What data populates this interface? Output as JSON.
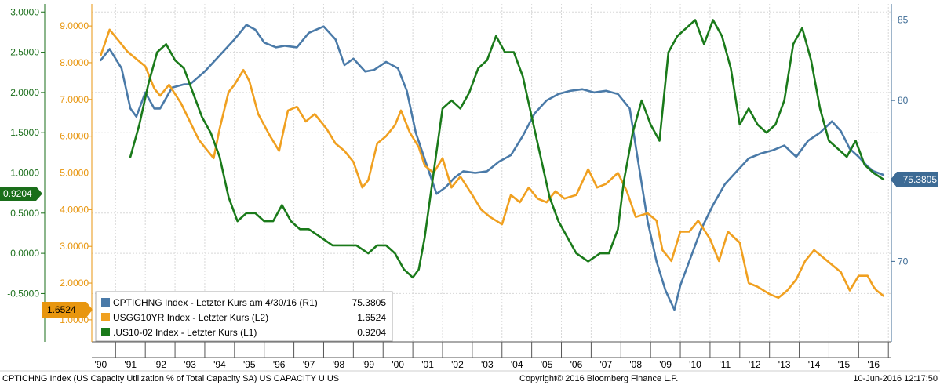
{
  "chart_data": {
    "type": "line",
    "x_tick_labels": [
      "'90",
      "'91",
      "'92",
      "'93",
      "'94",
      "'95",
      "'96",
      "'97",
      "'98",
      "'99",
      "'00",
      "'01",
      "'02",
      "'03",
      "'04",
      "'05",
      "'06",
      "'07",
      "'08",
      "'09",
      "'10",
      "'11",
      "'12",
      "'13",
      "'14",
      "'15",
      "'16"
    ],
    "x_range": [
      1989.7,
      2016.6
    ],
    "axes": {
      "L1": {
        "range": [
          -1.1,
          3.1
        ],
        "ticks": [
          -0.5,
          0,
          0.5,
          1,
          1.5,
          2,
          2.5,
          3
        ],
        "labels": [
          "-0.5000",
          "0.0000",
          "0.5000",
          "1.0000",
          "1.5000",
          "2.0000",
          "2.5000",
          "3.0000"
        ],
        "color": "#1a6e1a"
      },
      "L2": {
        "range": [
          0.4,
          9.6
        ],
        "ticks": [
          1,
          2,
          3,
          4,
          5,
          6,
          7,
          8,
          9
        ],
        "labels": [
          "1.0000",
          "2.0000",
          "3.0000",
          "4.0000",
          "5.0000",
          "6.0000",
          "7.0000",
          "8.0000",
          "9.0000"
        ],
        "color": "#e8960f"
      },
      "R1": {
        "range": [
          65,
          86
        ],
        "ticks": [
          70,
          75,
          80,
          85
        ],
        "labels": [
          "70",
          "75",
          "80",
          "85"
        ],
        "color": "#3d6b95"
      }
    },
    "grid": true,
    "series": [
      {
        "key": "cpt",
        "axis": "R1",
        "color": "#4a7aa8",
        "x": [
          1990.0,
          1990.3,
          1990.7,
          1991.0,
          1991.2,
          1991.5,
          1991.8,
          1992.0,
          1992.4,
          1992.8,
          1993.0,
          1993.5,
          1994.0,
          1994.5,
          1994.9,
          1995.2,
          1995.5,
          1995.9,
          1996.2,
          1996.6,
          1997.0,
          1997.5,
          1997.9,
          1998.2,
          1998.5,
          1998.9,
          1999.2,
          1999.6,
          2000.0,
          2000.3,
          2000.6,
          2001.0,
          2001.3,
          2001.6,
          2001.9,
          2002.2,
          2002.6,
          2003.0,
          2003.4,
          2003.8,
          2004.2,
          2004.6,
          2005.0,
          2005.4,
          2005.8,
          2006.2,
          2006.6,
          2007.0,
          2007.4,
          2007.8,
          2008.1,
          2008.4,
          2008.7,
          2009.0,
          2009.3,
          2009.5,
          2009.8,
          2010.2,
          2010.6,
          2011.0,
          2011.4,
          2011.8,
          2012.2,
          2012.6,
          2013.0,
          2013.4,
          2013.8,
          2014.2,
          2014.6,
          2014.9,
          2015.2,
          2015.5,
          2015.8,
          2016.0,
          2016.33
        ],
        "y": [
          82.5,
          83.2,
          82.0,
          79.5,
          79.0,
          80.5,
          79.5,
          79.5,
          80.8,
          81.0,
          81.0,
          81.8,
          82.8,
          83.8,
          84.7,
          84.4,
          83.6,
          83.3,
          83.4,
          83.3,
          84.2,
          84.6,
          83.8,
          82.2,
          82.6,
          81.8,
          81.9,
          82.4,
          82.0,
          80.6,
          78.0,
          75.8,
          74.2,
          74.6,
          75.2,
          75.6,
          75.5,
          75.6,
          76.2,
          76.6,
          77.8,
          79.2,
          80.0,
          80.4,
          80.6,
          80.7,
          80.5,
          80.6,
          80.4,
          79.5,
          76.0,
          72.5,
          70.0,
          68.2,
          67.0,
          68.5,
          70.0,
          72.0,
          73.5,
          74.8,
          75.6,
          76.4,
          76.7,
          76.9,
          77.2,
          76.5,
          77.5,
          78.0,
          78.7,
          78.1,
          77.0,
          76.5,
          75.9,
          75.6,
          75.3805
        ]
      },
      {
        "key": "usgg",
        "axis": "L2",
        "color": "#f0a020",
        "x": [
          1990.0,
          1990.3,
          1990.6,
          1990.9,
          1991.2,
          1991.5,
          1991.8,
          1992.0,
          1992.3,
          1992.7,
          1993.0,
          1993.3,
          1993.6,
          1993.8,
          1994.0,
          1994.3,
          1994.5,
          1994.8,
          1995.0,
          1995.3,
          1995.7,
          1996.0,
          1996.3,
          1996.6,
          1996.9,
          1997.2,
          1997.6,
          1997.9,
          1998.2,
          1998.5,
          1998.8,
          1999.0,
          1999.3,
          1999.6,
          1999.9,
          2000.1,
          2000.4,
          2000.7,
          2000.9,
          2001.2,
          2001.5,
          2001.8,
          2002.1,
          2002.5,
          2002.8,
          2003.1,
          2003.5,
          2003.8,
          2004.1,
          2004.4,
          2004.7,
          2005.0,
          2005.3,
          2005.6,
          2006.0,
          2006.4,
          2006.7,
          2007.0,
          2007.4,
          2007.7,
          2008.0,
          2008.4,
          2008.7,
          2008.9,
          2009.2,
          2009.5,
          2009.8,
          2010.1,
          2010.5,
          2010.8,
          2011.1,
          2011.5,
          2011.8,
          2012.1,
          2012.5,
          2012.8,
          2013.1,
          2013.4,
          2013.7,
          2014.0,
          2014.3,
          2014.6,
          2014.9,
          2015.2,
          2015.5,
          2015.8,
          2016.0,
          2016.1,
          2016.33
        ],
        "y": [
          8.2,
          8.9,
          8.6,
          8.3,
          8.1,
          7.9,
          7.3,
          7.1,
          7.4,
          6.9,
          6.4,
          5.9,
          5.6,
          5.4,
          6.2,
          7.2,
          7.4,
          7.8,
          7.5,
          6.6,
          6.0,
          5.6,
          6.7,
          6.8,
          6.4,
          6.6,
          6.2,
          5.8,
          5.6,
          5.3,
          4.6,
          4.8,
          5.8,
          6.0,
          6.3,
          6.7,
          6.1,
          5.7,
          5.2,
          5.0,
          5.4,
          4.6,
          4.9,
          4.4,
          4.0,
          3.8,
          3.6,
          4.4,
          4.2,
          4.6,
          4.3,
          4.2,
          4.5,
          4.3,
          4.4,
          5.1,
          4.6,
          4.7,
          5.0,
          4.5,
          3.8,
          3.9,
          3.7,
          2.9,
          2.6,
          3.4,
          3.4,
          3.7,
          3.2,
          2.6,
          3.4,
          3.1,
          2.0,
          1.9,
          1.7,
          1.6,
          1.8,
          2.1,
          2.6,
          2.9,
          2.7,
          2.5,
          2.3,
          1.8,
          2.2,
          2.2,
          1.9,
          1.8,
          1.6524
        ]
      },
      {
        "key": "us1002",
        "axis": "L1",
        "color": "#1a7a1a",
        "x": [
          1991.0,
          1991.3,
          1991.6,
          1991.9,
          1992.2,
          1992.5,
          1992.8,
          1993.1,
          1993.4,
          1993.7,
          1994.0,
          1994.3,
          1994.6,
          1994.9,
          1995.2,
          1995.5,
          1995.8,
          1996.1,
          1996.4,
          1996.7,
          1997.0,
          1997.4,
          1997.8,
          1998.2,
          1998.6,
          1999.0,
          1999.3,
          1999.6,
          1999.9,
          2000.2,
          2000.5,
          2000.7,
          2000.9,
          2001.2,
          2001.5,
          2001.8,
          2002.1,
          2002.4,
          2002.7,
          2003.0,
          2003.3,
          2003.6,
          2003.9,
          2004.2,
          2004.5,
          2004.8,
          2005.1,
          2005.4,
          2005.7,
          2006.0,
          2006.4,
          2006.8,
          2007.1,
          2007.4,
          2007.6,
          2007.9,
          2008.2,
          2008.5,
          2008.8,
          2009.1,
          2009.4,
          2009.7,
          2010.0,
          2010.3,
          2010.6,
          2010.9,
          2011.2,
          2011.5,
          2011.8,
          2012.1,
          2012.4,
          2012.7,
          2013.0,
          2013.3,
          2013.6,
          2013.9,
          2014.2,
          2014.5,
          2014.8,
          2015.1,
          2015.4,
          2015.7,
          2016.0,
          2016.33
        ],
        "y": [
          1.2,
          1.6,
          2.1,
          2.5,
          2.6,
          2.4,
          2.3,
          2.0,
          1.7,
          1.5,
          1.2,
          0.7,
          0.4,
          0.5,
          0.5,
          0.4,
          0.4,
          0.6,
          0.4,
          0.3,
          0.3,
          0.2,
          0.1,
          0.1,
          0.1,
          0.0,
          0.1,
          0.1,
          0.0,
          -0.2,
          -0.3,
          -0.2,
          0.2,
          1.0,
          1.8,
          1.9,
          1.8,
          2.0,
          2.3,
          2.4,
          2.7,
          2.5,
          2.5,
          2.2,
          1.7,
          1.2,
          0.7,
          0.4,
          0.2,
          0.0,
          -0.1,
          0.0,
          0.0,
          0.3,
          0.9,
          1.5,
          1.9,
          1.6,
          1.4,
          2.5,
          2.7,
          2.8,
          2.9,
          2.6,
          2.9,
          2.7,
          2.3,
          1.6,
          1.8,
          1.6,
          1.5,
          1.6,
          1.9,
          2.6,
          2.8,
          2.4,
          1.8,
          1.4,
          1.3,
          1.2,
          1.4,
          1.1,
          1.0,
          0.9204
        ]
      }
    ],
    "legend": {
      "placement": "bottom-left",
      "entries": [
        {
          "series": "cpt",
          "label": "CPTICHNG Index - Letzter Kurs am 4/30/16 (R1)",
          "value": "75.3805"
        },
        {
          "series": "usgg",
          "label": "USGG10YR Index - Letzter Kurs (L2)",
          "value": "1.6524"
        },
        {
          "series": "us1002",
          "label": ".US10-02 Index - Letzter Kurs (L1)",
          "value": "0.9204"
        }
      ]
    },
    "value_tags": {
      "right": "75.3805",
      "left_green": "0.9204",
      "left_orange": "1.6524"
    }
  },
  "footer": {
    "left": "CPTICHNG Index (US Capacity Utilization % of Total Capacity SA) US CAPACITY U US",
    "center": "Copyright© 2016 Bloomberg Finance L.P.",
    "right": "10-Jun-2016 12:17:50"
  }
}
